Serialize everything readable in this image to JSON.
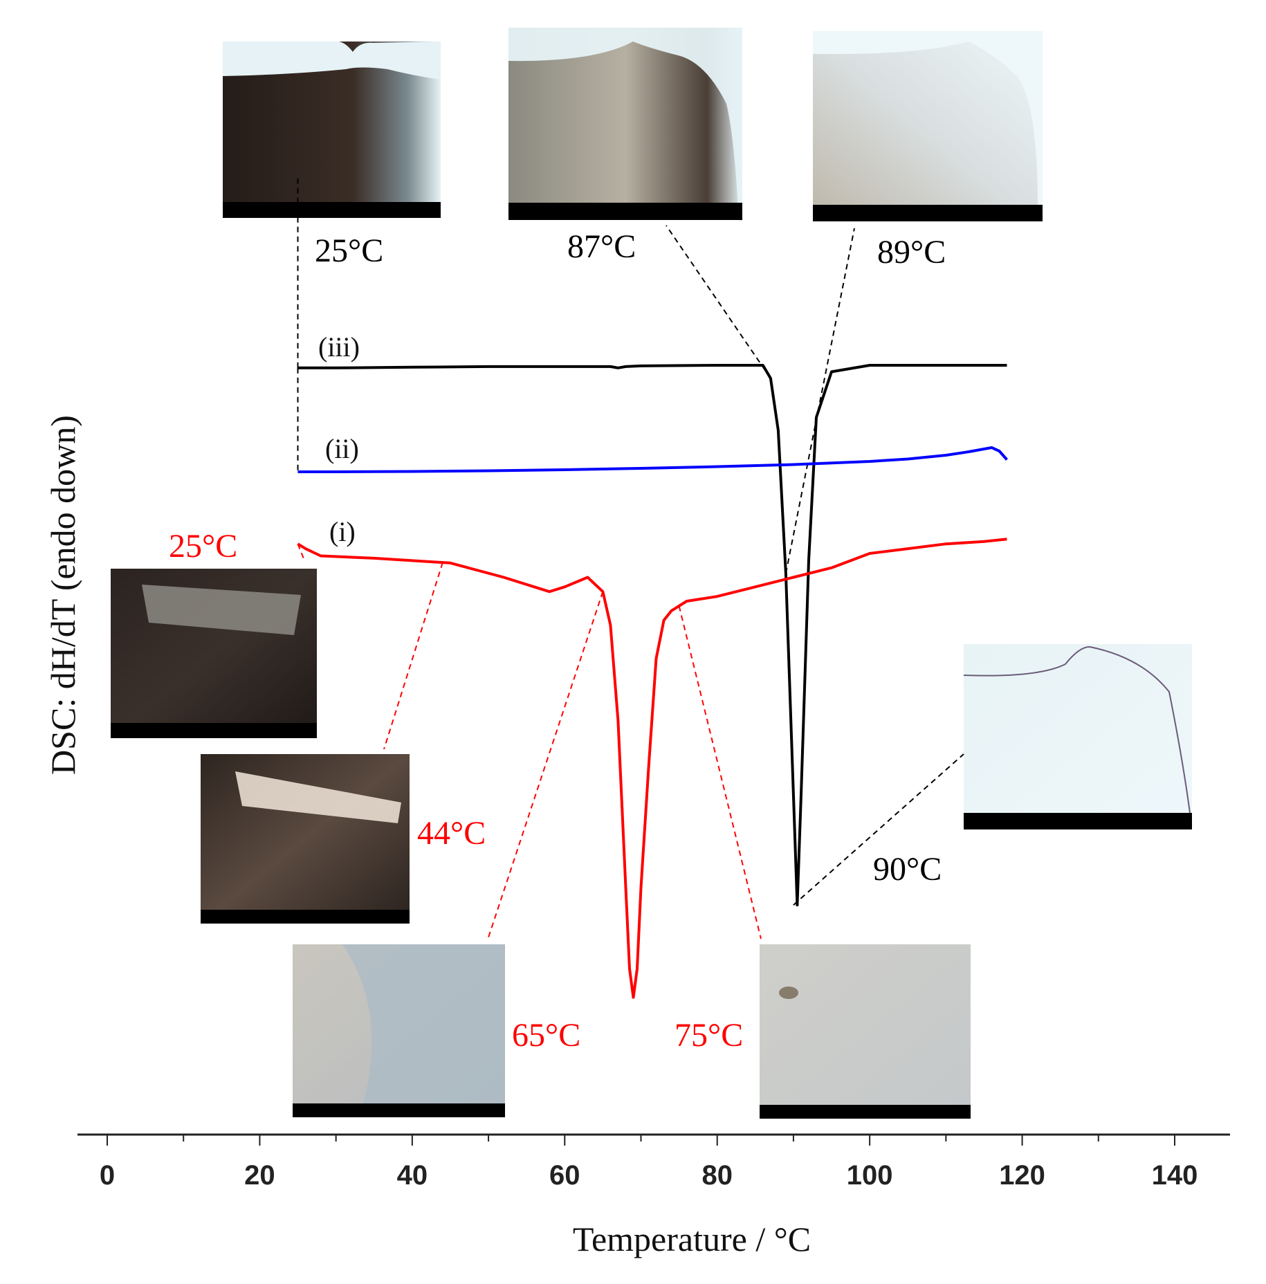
{
  "chart_data": {
    "type": "line",
    "xlabel": "Temperature / °C",
    "ylabel": "DSC: dH/dT (endo down)",
    "xlim": [
      0,
      140
    ],
    "x_ticks": [
      "0",
      "20",
      "40",
      "60",
      "80",
      "100",
      "120",
      "140"
    ],
    "grid": false,
    "y_direction": "endo down",
    "series": [
      {
        "name": "(iii)",
        "color": "#000000",
        "x": [
          25,
          30,
          40,
          50,
          60,
          66,
          67,
          68,
          70,
          80,
          86,
          87,
          88,
          89,
          90,
          90.5,
          91,
          92,
          93,
          95,
          100,
          110,
          118
        ],
        "y": [
          -0.04,
          -0.04,
          -0.03,
          -0.02,
          -0.02,
          -0.02,
          -0.04,
          -0.02,
          -0.01,
          0,
          0,
          -0.2,
          -1.0,
          -3.2,
          -6.6,
          -8.3,
          -6.6,
          -3.0,
          -0.8,
          -0.1,
          0,
          0,
          0
        ]
      },
      {
        "name": "(ii)",
        "color": "#0000ff",
        "x": [
          25,
          30,
          40,
          50,
          60,
          70,
          80,
          90,
          100,
          105,
          110,
          113,
          116,
          117,
          118
        ],
        "y": [
          0,
          0,
          0.01,
          0.03,
          0.06,
          0.1,
          0.15,
          0.21,
          0.3,
          0.37,
          0.48,
          0.58,
          0.7,
          0.6,
          0.35
        ]
      },
      {
        "name": "(i)",
        "color": "#ff0000",
        "x": [
          25,
          26,
          28,
          35,
          45,
          52,
          58,
          60,
          63,
          65,
          66,
          67,
          68,
          68.5,
          69,
          69.5,
          70,
          71,
          72,
          73,
          74,
          76,
          80,
          85,
          90,
          95,
          100,
          105,
          110,
          115,
          118
        ],
        "y": [
          0.2,
          0.1,
          -0.05,
          -0.1,
          -0.2,
          -0.5,
          -0.8,
          -0.7,
          -0.5,
          -0.8,
          -1.5,
          -3.5,
          -7.0,
          -8.7,
          -9.3,
          -8.7,
          -7.0,
          -4.5,
          -2.2,
          -1.4,
          -1.2,
          -1.0,
          -0.9,
          -0.7,
          -0.5,
          -0.3,
          0,
          0.1,
          0.2,
          0.25,
          0.3
        ]
      }
    ],
    "annotations": [
      {
        "text": "25°C",
        "series": "(iii)",
        "x": 25,
        "color": "#000000"
      },
      {
        "text": "87°C",
        "series": "(iii)",
        "x": 87,
        "color": "#000000"
      },
      {
        "text": "89°C",
        "series": "(iii)",
        "x": 89,
        "color": "#000000"
      },
      {
        "text": "90°C",
        "series": "(iii)",
        "x": 90,
        "color": "#000000"
      },
      {
        "text": "25°C",
        "series": "(i)",
        "x": 25,
        "color": "#ff0000"
      },
      {
        "text": "44°C",
        "series": "(i)",
        "x": 44,
        "color": "#ff0000"
      },
      {
        "text": "65°C",
        "series": "(i)",
        "x": 65,
        "color": "#ff0000"
      },
      {
        "text": "75°C",
        "series": "(i)",
        "x": 75,
        "color": "#ff0000"
      }
    ],
    "micrographs": [
      {
        "name": "micrograph-iii-25c",
        "style": "birefringent-dark"
      },
      {
        "name": "micrograph-iii-87c",
        "style": "birefringent-mid"
      },
      {
        "name": "micrograph-iii-89c",
        "style": "birefringent-light"
      },
      {
        "name": "micrograph-iii-90c",
        "style": "isotropic-light"
      },
      {
        "name": "micrograph-i-25c",
        "style": "dark-crystal"
      },
      {
        "name": "micrograph-i-44c",
        "style": "dark-crystal-bright"
      },
      {
        "name": "micrograph-i-65c",
        "style": "grey-melting"
      },
      {
        "name": "micrograph-i-75c",
        "style": "grey-melt"
      }
    ]
  }
}
